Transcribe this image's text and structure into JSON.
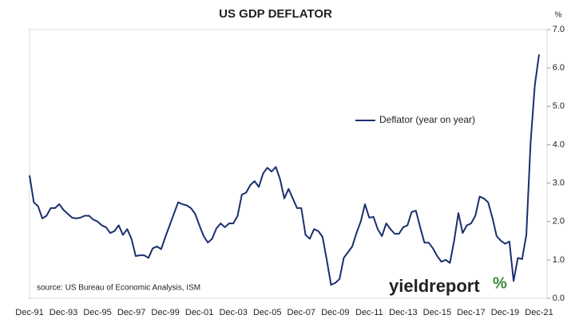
{
  "chart_data": {
    "type": "line",
    "title": "US GDP DEFLATOR",
    "y_unit": "%",
    "source": "source: US Bureau of Economic Analysis, ISM",
    "logo": "yieldreport",
    "logo_symbol": "%",
    "legend": "center",
    "categories": [
      "Dec-91",
      null,
      null,
      null,
      null,
      null,
      null,
      null,
      "Dec-93",
      null,
      null,
      null,
      null,
      null,
      null,
      null,
      "Dec-95",
      null,
      null,
      null,
      null,
      null,
      null,
      null,
      "Dec-97",
      null,
      null,
      null,
      null,
      null,
      null,
      null,
      "Dec-99",
      null,
      null,
      null,
      null,
      null,
      null,
      null,
      "Dec-01",
      null,
      null,
      null,
      null,
      null,
      null,
      null,
      "Dec-03",
      null,
      null,
      null,
      null,
      null,
      null,
      null,
      "Dec-05",
      null,
      null,
      null,
      null,
      null,
      null,
      null,
      "Dec-07",
      null,
      null,
      null,
      null,
      null,
      null,
      null,
      "Dec-09",
      null,
      null,
      null,
      null,
      null,
      null,
      null,
      "Dec-11",
      null,
      null,
      null,
      null,
      null,
      null,
      null,
      "Dec-13",
      null,
      null,
      null,
      null,
      null,
      null,
      null,
      "Dec-15",
      null,
      null,
      null,
      null,
      null,
      null,
      null,
      "Dec-17",
      null,
      null,
      null,
      null,
      null,
      null,
      null,
      "Dec-19",
      null,
      null,
      null,
      null,
      null,
      null,
      null,
      "Dec-21"
    ],
    "series": [
      {
        "name": "Deflator (year on year)",
        "color": "#1b2f6e",
        "values": [
          3.2,
          2.5,
          2.4,
          2.08,
          2.15,
          2.35,
          2.35,
          2.45,
          2.3,
          2.2,
          2.1,
          2.08,
          2.1,
          2.15,
          2.15,
          2.05,
          2.0,
          1.9,
          1.85,
          1.7,
          1.75,
          1.9,
          1.65,
          1.8,
          1.55,
          1.1,
          1.12,
          1.12,
          1.05,
          1.3,
          1.35,
          1.28,
          1.6,
          1.9,
          2.2,
          2.5,
          2.45,
          2.42,
          2.35,
          2.2,
          1.9,
          1.62,
          1.45,
          1.55,
          1.82,
          1.95,
          1.85,
          1.95,
          1.95,
          2.15,
          2.7,
          2.75,
          2.95,
          3.05,
          2.9,
          3.25,
          3.4,
          3.3,
          3.42,
          3.1,
          2.6,
          2.85,
          2.6,
          2.35,
          2.35,
          1.65,
          1.55,
          1.8,
          1.75,
          1.6,
          1.0,
          0.35,
          0.4,
          0.5,
          1.05,
          1.2,
          1.35,
          1.7,
          2.0,
          2.45,
          2.1,
          2.12,
          1.8,
          1.62,
          1.95,
          1.8,
          1.68,
          1.68,
          1.85,
          1.9,
          2.25,
          2.28,
          1.85,
          1.45,
          1.45,
          1.3,
          1.1,
          0.95,
          1.0,
          0.92,
          1.5,
          2.22,
          1.7,
          1.9,
          1.95,
          2.15,
          2.65,
          2.6,
          2.5,
          2.1,
          1.62,
          1.5,
          1.42,
          1.48,
          0.45,
          1.05,
          1.02,
          1.65,
          4.05,
          5.55,
          6.35
        ]
      }
    ],
    "ylim": [
      0,
      7
    ],
    "yticks": [
      {
        "value": 0,
        "label": "0.0"
      },
      {
        "value": 1,
        "label": "1.0"
      },
      {
        "value": 2,
        "label": "2.0"
      },
      {
        "value": 3,
        "label": "3.0"
      },
      {
        "value": 4,
        "label": "4.0"
      },
      {
        "value": 5,
        "label": "5.0"
      },
      {
        "value": 6,
        "label": "6.0"
      },
      {
        "value": 7,
        "label": "7.0"
      }
    ],
    "y_axis_side": "right",
    "grid": false
  }
}
